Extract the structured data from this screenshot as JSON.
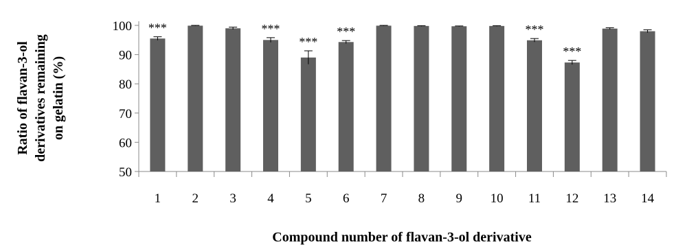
{
  "chart_data": {
    "type": "bar",
    "xlabel": "Compound number of flavan-3-ol derivative",
    "ylabel_lines": [
      "Ratio of flavan-3-ol",
      "derivatives remaining",
      "on gelatin (%)"
    ],
    "ylim": [
      50,
      100
    ],
    "yticks": [
      50,
      60,
      70,
      80,
      90,
      100
    ],
    "categories": [
      "1",
      "2",
      "3",
      "4",
      "5",
      "6",
      "7",
      "8",
      "9",
      "10",
      "11",
      "12",
      "13",
      "14"
    ],
    "values": [
      95.5,
      99.9,
      99.0,
      95.0,
      89.0,
      94.3,
      99.9,
      99.8,
      99.7,
      99.8,
      94.9,
      87.3,
      98.9,
      98.0
    ],
    "errors": [
      0.6,
      0.1,
      0.4,
      0.8,
      2.3,
      0.5,
      0.1,
      0.1,
      0.1,
      0.1,
      0.6,
      0.7,
      0.3,
      0.5
    ],
    "annotations": [
      "***",
      "",
      "",
      "***",
      "***",
      "***",
      "",
      "",
      "",
      "",
      "***",
      "***",
      "",
      ""
    ],
    "bar_color": "#5f5f5f",
    "grid": false,
    "legend": "none"
  }
}
